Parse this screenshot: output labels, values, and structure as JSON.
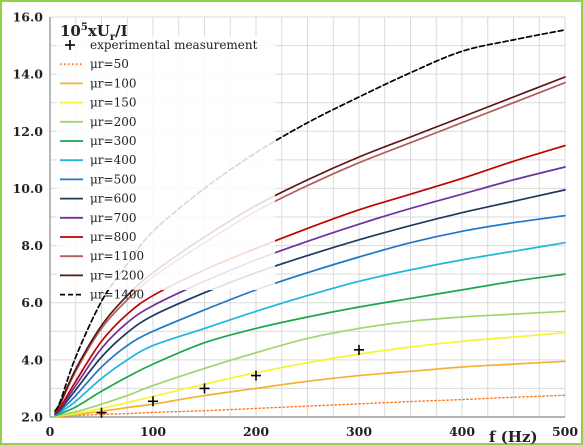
{
  "chart_data": {
    "type": "line",
    "title": "",
    "ylabel": "10^5xU_r/I",
    "ylabel_parts": {
      "base": "10",
      "exp": "5",
      "mid": "xU",
      "sub": "r",
      "tail": "/I"
    },
    "xlabel": "f (Hz)",
    "xlim": [
      0,
      500
    ],
    "ylim": [
      2.0,
      16.0
    ],
    "x_ticks": [
      "0",
      "100",
      "200",
      "300",
      "400",
      "500"
    ],
    "y_ticks": [
      "2.0",
      "4.0",
      "6.0",
      "8.0",
      "10.0",
      "12.0",
      "14.0",
      "16.0"
    ],
    "grid": true,
    "legend_position": "top-left",
    "colors": {
      "border": "#8fd24a",
      "grid": "#d9d9d9",
      "axis": "#888888"
    },
    "x": [
      5,
      10,
      25,
      50,
      75,
      100,
      150,
      200,
      250,
      300,
      350,
      400,
      450,
      500
    ],
    "series": [
      {
        "name": "experimental measurement",
        "style": "marker",
        "marker": "+",
        "color": "#000000",
        "x": [
          50,
          100,
          150,
          200,
          300
        ],
        "y": [
          2.15,
          2.55,
          3.0,
          3.45,
          4.35
        ]
      },
      {
        "name": "μr=50",
        "style": "dotted",
        "color": "#ed7d31",
        "y": [
          2.0,
          2.02,
          2.05,
          2.09,
          2.12,
          2.16,
          2.22,
          2.3,
          2.38,
          2.46,
          2.54,
          2.61,
          2.69,
          2.76
        ]
      },
      {
        "name": "μr=100",
        "style": "solid",
        "color": "#f2b134",
        "y": [
          2.0,
          2.03,
          2.08,
          2.2,
          2.33,
          2.45,
          2.75,
          3.0,
          3.25,
          3.45,
          3.6,
          3.75,
          3.85,
          3.95
        ]
      },
      {
        "name": "μr=150",
        "style": "solid",
        "color": "#f5f531",
        "y": [
          2.01,
          2.05,
          2.12,
          2.3,
          2.5,
          2.72,
          3.15,
          3.55,
          3.9,
          4.2,
          4.45,
          4.65,
          4.8,
          4.95
        ]
      },
      {
        "name": "μr=200",
        "style": "solid",
        "color": "#a1d46a",
        "y": [
          2.02,
          2.07,
          2.18,
          2.45,
          2.75,
          3.1,
          3.7,
          4.25,
          4.75,
          5.1,
          5.35,
          5.5,
          5.6,
          5.7
        ]
      },
      {
        "name": "μr=300",
        "style": "solid",
        "color": "#1aa84a",
        "y": [
          2.05,
          2.12,
          2.35,
          2.9,
          3.4,
          3.85,
          4.6,
          5.1,
          5.5,
          5.85,
          6.15,
          6.45,
          6.75,
          7.0
        ]
      },
      {
        "name": "μr=400",
        "style": "solid",
        "color": "#21b5e0",
        "y": [
          2.07,
          2.17,
          2.55,
          3.35,
          4.0,
          4.5,
          5.1,
          5.7,
          6.25,
          6.75,
          7.15,
          7.5,
          7.8,
          8.1
        ]
      },
      {
        "name": "μr=500",
        "style": "solid",
        "color": "#1f77c8",
        "y": [
          2.09,
          2.22,
          2.75,
          3.75,
          4.5,
          5.0,
          5.75,
          6.45,
          7.05,
          7.6,
          8.1,
          8.5,
          8.8,
          9.05
        ]
      },
      {
        "name": "μr=600",
        "style": "solid",
        "color": "#1f3864",
        "y": [
          2.1,
          2.26,
          2.95,
          4.1,
          4.95,
          5.55,
          6.35,
          7.05,
          7.65,
          8.2,
          8.7,
          9.15,
          9.55,
          9.95
        ]
      },
      {
        "name": "μr=700",
        "style": "solid",
        "color": "#7030a0",
        "y": [
          2.12,
          2.3,
          3.1,
          4.4,
          5.3,
          5.9,
          6.75,
          7.5,
          8.15,
          8.75,
          9.3,
          9.8,
          10.3,
          10.75
        ]
      },
      {
        "name": "μr=800",
        "style": "solid",
        "color": "#c00000",
        "y": [
          2.14,
          2.34,
          3.25,
          4.65,
          5.6,
          6.25,
          7.15,
          7.9,
          8.6,
          9.25,
          9.8,
          10.35,
          10.95,
          11.5
        ]
      },
      {
        "name": "μr=1100",
        "style": "solid",
        "color": "#b05e5a",
        "y": [
          2.18,
          2.45,
          3.6,
          5.1,
          6.1,
          6.9,
          8.1,
          9.2,
          10.1,
          10.9,
          11.6,
          12.3,
          13.0,
          13.7
        ]
      },
      {
        "name": "μr=1200",
        "style": "solid",
        "color": "#5c1414",
        "y": [
          2.19,
          2.48,
          3.68,
          5.2,
          6.25,
          7.05,
          8.3,
          9.4,
          10.3,
          11.1,
          11.8,
          12.5,
          13.2,
          13.9
        ]
      },
      {
        "name": "μr=1400",
        "style": "dashed",
        "color": "#000000",
        "y": [
          2.22,
          2.55,
          4.1,
          6.05,
          7.35,
          8.5,
          10.0,
          11.25,
          12.3,
          13.2,
          14.05,
          14.8,
          15.2,
          15.55
        ]
      }
    ]
  }
}
